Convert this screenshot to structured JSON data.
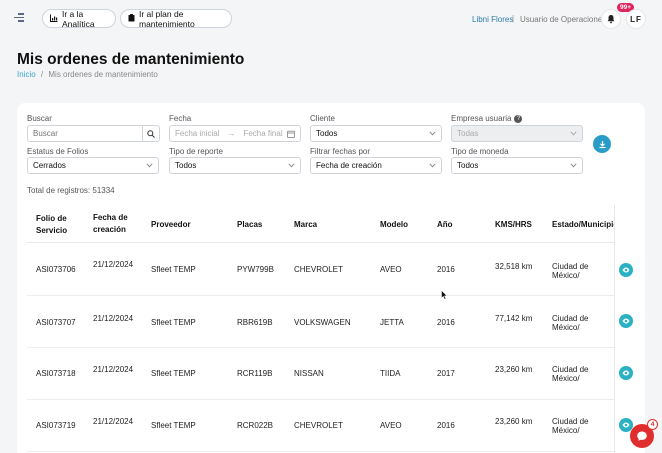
{
  "topbar": {
    "analytics_label": "Ir a la Analítica",
    "plan_label": "Ir al plan de mantenimiento",
    "user_name": "Libni Flores",
    "separator": "|",
    "user_role": "Usuario de Operaciones",
    "notifications_badge": "99+",
    "avatar_initials": "LF"
  },
  "page": {
    "title": "Mis ordenes de mantenimiento",
    "breadcrumb_home": "Inicio",
    "breadcrumb_sep": "/",
    "breadcrumb_current": "Mis ordenes de mantenimiento"
  },
  "filters": {
    "search_label": "Buscar",
    "search_placeholder": "Buscar",
    "fecha_label": "Fecha",
    "fecha_start_placeholder": "Fecha inicial",
    "fecha_end_placeholder": "Fecha final",
    "cliente_label": "Cliente",
    "cliente_value": "Todos",
    "empresa_label": "Empresa usuaria",
    "empresa_value": "Todas",
    "estatus_label": "Estatus de Folios",
    "estatus_value": "Cerrados",
    "tipo_reporte_label": "Tipo de reporte",
    "tipo_reporte_value": "Todos",
    "filtrar_label": "Filtrar fechas por",
    "filtrar_value": "Fecha de creación",
    "moneda_label": "Tipo de moneda",
    "moneda_value": "Todos"
  },
  "total_label": "Total de registros: 51334",
  "table": {
    "headers": {
      "folio_1": "Folio de",
      "folio_2": "Servicio",
      "fecha_1": "Fecha de",
      "fecha_2": "creación",
      "proveedor": "Proveedor",
      "placas": "Placas",
      "marca": "Marca",
      "modelo": "Modelo",
      "anio": "Año",
      "kms": "KMS/HRS",
      "estado": "Estado/Municipio"
    },
    "rows": [
      {
        "folio": "ASI073706",
        "fecha": "21/12/2024",
        "proveedor": "Sfleet TEMP",
        "placas": "PYW799B",
        "marca": "CHEVROLET",
        "modelo": "AVEO",
        "anio": "2016",
        "kms": "32,518 km",
        "estado": "Ciudad de México/"
      },
      {
        "folio": "ASI073707",
        "fecha": "21/12/2024",
        "proveedor": "Sfleet TEMP",
        "placas": "RBR619B",
        "marca": "VOLKSWAGEN",
        "modelo": "JETTA",
        "anio": "2016",
        "kms": "77,142 km",
        "estado": "Ciudad de México/"
      },
      {
        "folio": "ASI073718",
        "fecha": "21/12/2024",
        "proveedor": "Sfleet TEMP",
        "placas": "RCR119B",
        "marca": "NISSAN",
        "modelo": "TIIDA",
        "anio": "2017",
        "kms": "23,260 km",
        "estado": "Ciudad de México/"
      },
      {
        "folio": "ASI073719",
        "fecha": "21/12/2024",
        "proveedor": "Sfleet TEMP",
        "placas": "RCR022B",
        "marca": "CHEVROLET",
        "modelo": "AVEO",
        "anio": "2016",
        "kms": "23,260 km",
        "estado": "Ciudad de México/"
      }
    ]
  },
  "chat_badge": "4",
  "colors": {
    "accent": "#2a9cc8",
    "eye": "#2ab1c4",
    "badge": "#e0245e",
    "chat": "#e02d2d"
  }
}
